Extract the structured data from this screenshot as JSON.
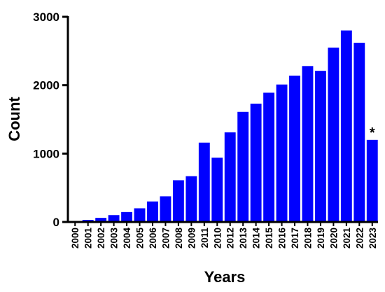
{
  "chart_data": {
    "type": "bar",
    "title": "",
    "xlabel": "Years",
    "ylabel": "Count",
    "categories": [
      "2000",
      "2001",
      "2002",
      "2003",
      "2004",
      "2005",
      "2006",
      "2007",
      "2008",
      "2009",
      "2011",
      "2010",
      "2012",
      "2013",
      "2014",
      "2015",
      "2016",
      "2017",
      "2018",
      "2019",
      "2020",
      "2021",
      "2022",
      "2023"
    ],
    "values": [
      15,
      30,
      60,
      100,
      145,
      200,
      300,
      375,
      610,
      670,
      1160,
      940,
      1310,
      1610,
      1730,
      1890,
      2010,
      2140,
      2280,
      2210,
      2550,
      2800,
      2620,
      1200
    ],
    "ylim": [
      0,
      3000
    ],
    "yticks": [
      0,
      1000,
      2000,
      3000
    ],
    "grid": false,
    "legend": "none",
    "bar_color": "#0000FF",
    "annotations": [
      {
        "text": "*",
        "category": "2023"
      }
    ]
  }
}
